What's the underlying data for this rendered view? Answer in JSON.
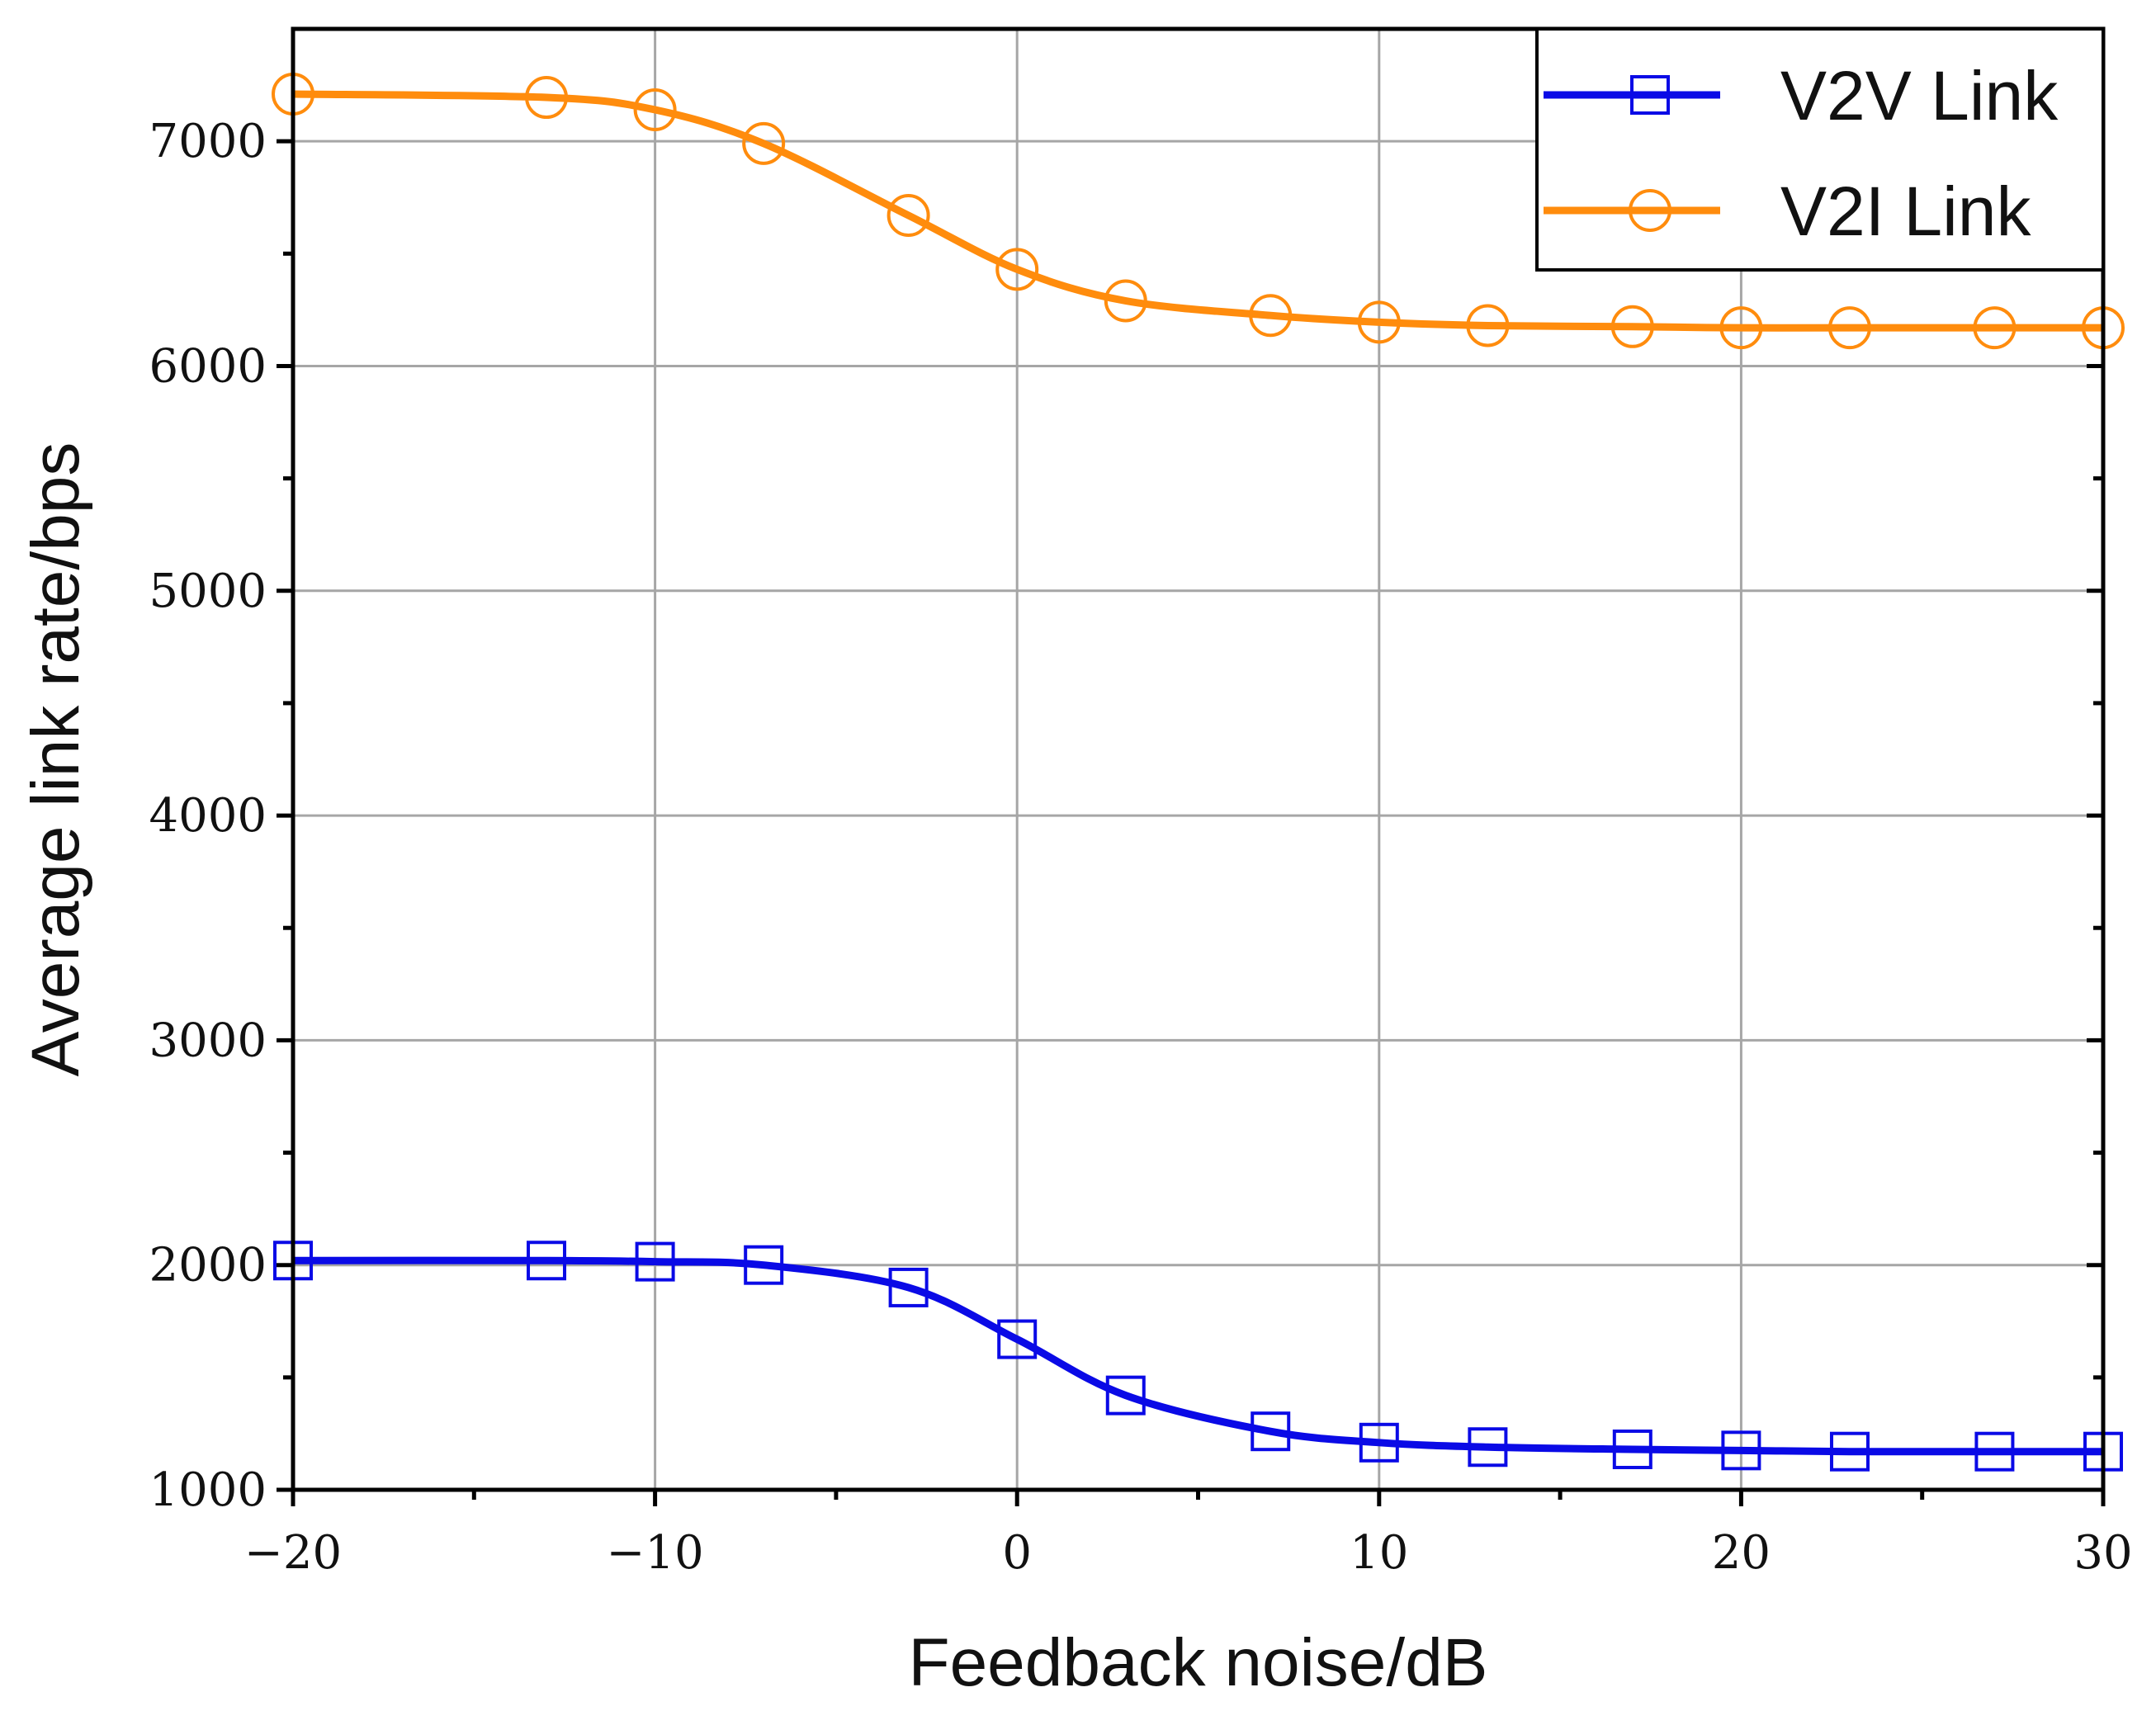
{
  "chart_data": {
    "type": "line",
    "title": "",
    "xlabel": "Feedback noise/dB",
    "ylabel": "Average link rate/bps",
    "xlim": [
      -20,
      30
    ],
    "ylim": [
      1000,
      7500
    ],
    "xticks": [
      -20,
      -10,
      0,
      10,
      20,
      30
    ],
    "xtick_labels": [
      "−20",
      "−10",
      "0",
      "10",
      "20",
      "30"
    ],
    "yticks": [
      1000,
      2000,
      3000,
      4000,
      5000,
      6000,
      7000
    ],
    "ytick_labels": [
      "1000",
      "2000",
      "3000",
      "4000",
      "5000",
      "6000",
      "7000"
    ],
    "grid": true,
    "legend_position": "top-right",
    "x": [
      -20,
      -13,
      -10,
      -7,
      -3,
      0,
      3,
      7,
      10,
      13,
      17,
      20,
      23,
      27,
      30
    ],
    "series": [
      {
        "name": "V2V Link",
        "color": "#0a0ae6",
        "marker": "square",
        "values": [
          2020,
          2020,
          2015,
          2000,
          1900,
          1670,
          1420,
          1260,
          1210,
          1190,
          1180,
          1175,
          1170,
          1170,
          1170
        ]
      },
      {
        "name": "V2I Link",
        "color": "#ff8c0d",
        "marker": "circle",
        "values": [
          7210,
          7195,
          7140,
          6990,
          6670,
          6430,
          6290,
          6225,
          6195,
          6180,
          6175,
          6170,
          6170,
          6170,
          6170
        ]
      }
    ]
  }
}
